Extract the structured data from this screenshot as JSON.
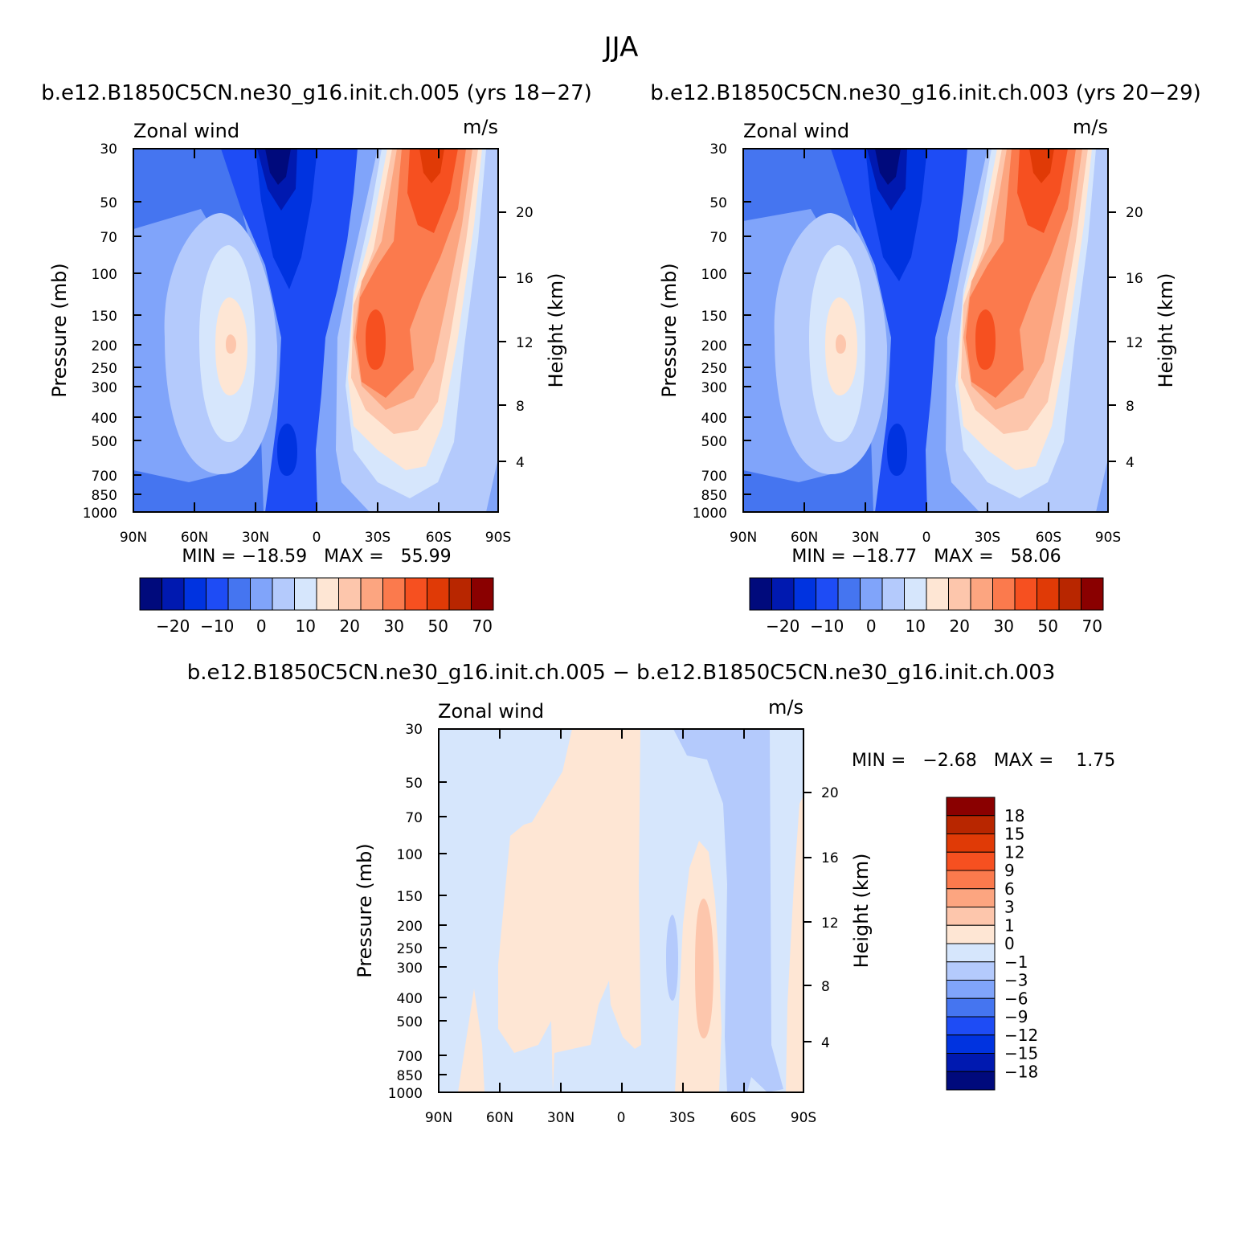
{
  "figure_title": "JJA",
  "chart_data": [
    {
      "type": "heatmap",
      "id": "panel1",
      "title": "b.e12.B1850C5CN.ne30_g16.init.ch.005 (yrs 18−27)",
      "left_label": "Zonal wind",
      "right_label": "m/s",
      "ylabel": "Pressure (mb)",
      "ylabel_right": "Height (km)",
      "x_ticks": [
        "90N",
        "60N",
        "30N",
        "0",
        "30S",
        "60S",
        "90S"
      ],
      "y_ticks": [
        "30",
        "50",
        "70",
        "100",
        "150",
        "200",
        "250",
        "300",
        "400",
        "500",
        "700",
        "850",
        "1000"
      ],
      "y_ticks_right": [
        "20",
        "16",
        "12",
        "8",
        "4"
      ],
      "xlim": [
        "90N",
        "90S"
      ],
      "ylim": [
        1000,
        30
      ],
      "stats": "MIN = −18.59   MAX =   55.99",
      "min": -18.59,
      "max": 55.99,
      "colorbar_labels": [
        "−20",
        "−10",
        "0",
        "10",
        "20",
        "30",
        "50",
        "70"
      ],
      "colorbar_colors": [
        "#000a7c",
        "#0019b0",
        "#0033e0",
        "#1e4cf5",
        "#4575f0",
        "#80a4fa",
        "#b4cafc",
        "#d6e6fc",
        "#fee6d4",
        "#fdc6ac",
        "#fca580",
        "#fb7a4d",
        "#f65020",
        "#e03a06",
        "#b82600",
        "#8a0000"
      ]
    },
    {
      "type": "heatmap",
      "id": "panel2",
      "title": "b.e12.B1850C5CN.ne30_g16.init.ch.003 (yrs 20−29)",
      "left_label": "Zonal wind",
      "right_label": "m/s",
      "ylabel": "Pressure (mb)",
      "ylabel_right": "Height (km)",
      "x_ticks": [
        "90N",
        "60N",
        "30N",
        "0",
        "30S",
        "60S",
        "90S"
      ],
      "y_ticks": [
        "30",
        "50",
        "70",
        "100",
        "150",
        "200",
        "250",
        "300",
        "400",
        "500",
        "700",
        "850",
        "1000"
      ],
      "y_ticks_right": [
        "20",
        "16",
        "12",
        "8",
        "4"
      ],
      "xlim": [
        "90N",
        "90S"
      ],
      "ylim": [
        1000,
        30
      ],
      "stats": "MIN = −18.77   MAX =   58.06",
      "min": -18.77,
      "max": 58.06,
      "colorbar_labels": [
        "−20",
        "−10",
        "0",
        "10",
        "20",
        "30",
        "50",
        "70"
      ],
      "colorbar_colors": [
        "#000a7c",
        "#0019b0",
        "#0033e0",
        "#1e4cf5",
        "#4575f0",
        "#80a4fa",
        "#b4cafc",
        "#d6e6fc",
        "#fee6d4",
        "#fdc6ac",
        "#fca580",
        "#fb7a4d",
        "#f65020",
        "#e03a06",
        "#b82600",
        "#8a0000"
      ]
    },
    {
      "type": "heatmap",
      "id": "panel3",
      "title": "b.e12.B1850C5CN.ne30_g16.init.ch.005 − b.e12.B1850C5CN.ne30_g16.init.ch.003",
      "left_label": "Zonal wind",
      "right_label": "m/s",
      "ylabel": "Pressure (mb)",
      "ylabel_right": "Height (km)",
      "x_ticks": [
        "90N",
        "60N",
        "30N",
        "0",
        "30S",
        "60S",
        "90S"
      ],
      "y_ticks": [
        "30",
        "50",
        "70",
        "100",
        "150",
        "200",
        "250",
        "300",
        "400",
        "500",
        "700",
        "850",
        "1000"
      ],
      "y_ticks_right": [
        "20",
        "16",
        "12",
        "8",
        "4"
      ],
      "xlim": [
        "90N",
        "90S"
      ],
      "ylim": [
        1000,
        30
      ],
      "stats": "MIN =   −2.68   MAX =    1.75",
      "min": -2.68,
      "max": 1.75,
      "colorbar_labels": [
        "18",
        "15",
        "12",
        "9",
        "6",
        "3",
        "1",
        "0",
        "−1",
        "−3",
        "−6",
        "−9",
        "−12",
        "−15",
        "−18"
      ],
      "colorbar_colors": [
        "#8a0000",
        "#b82600",
        "#e03a06",
        "#f65020",
        "#fb7a4d",
        "#fca580",
        "#fdc6ac",
        "#fee6d4",
        "#d6e6fc",
        "#b4cafc",
        "#80a4fa",
        "#4575f0",
        "#1e4cf5",
        "#0033e0",
        "#0019b0",
        "#000a7c"
      ]
    }
  ]
}
